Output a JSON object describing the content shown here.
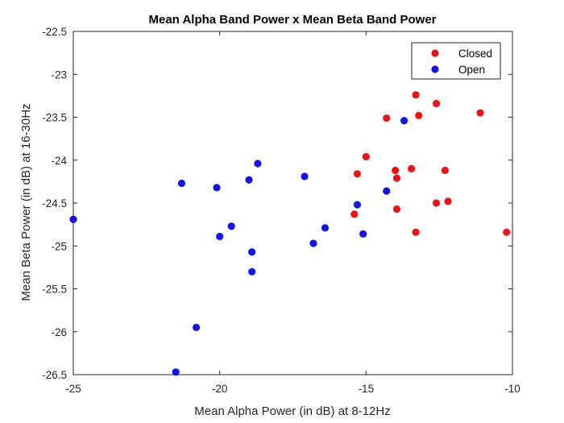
{
  "chart_data": {
    "type": "scatter",
    "title": "Mean Alpha Band Power x Mean Beta Band Power",
    "xlabel": "Mean Alpha Power (in dB) at 8-12Hz",
    "ylabel": "Mean Beta Power (in dB) at 16-30Hz",
    "xlim": [
      -25,
      -10
    ],
    "ylim": [
      -26.5,
      -22.5
    ],
    "xticks": [
      -25,
      -20,
      -15,
      -10
    ],
    "xtick_labels": [
      "-25",
      "-20",
      "-15",
      "-10"
    ],
    "yticks": [
      -26.5,
      -26,
      -25.5,
      -25,
      -24.5,
      -24,
      -23.5,
      -23,
      -22.5
    ],
    "ytick_labels": [
      "-26.5",
      "-26",
      "-25.5",
      "-25",
      "-24.5",
      "-24",
      "-23.5",
      "-23",
      "-22.5"
    ],
    "grid": false,
    "legend_position": "top-right",
    "series": [
      {
        "name": "Closed",
        "color": "#e8141a",
        "points": [
          [
            -13.3,
            -23.24
          ],
          [
            -12.6,
            -23.34
          ],
          [
            -11.1,
            -23.45
          ],
          [
            -13.2,
            -23.48
          ],
          [
            -14.3,
            -23.51
          ],
          [
            -15.0,
            -23.96
          ],
          [
            -14.0,
            -24.12
          ],
          [
            -13.45,
            -24.1
          ],
          [
            -12.3,
            -24.12
          ],
          [
            -15.3,
            -24.16
          ],
          [
            -13.95,
            -24.21
          ],
          [
            -12.6,
            -24.5
          ],
          [
            -12.2,
            -24.48
          ],
          [
            -13.95,
            -24.57
          ],
          [
            -15.4,
            -24.63
          ],
          [
            -13.3,
            -24.84
          ],
          [
            -10.2,
            -24.84
          ]
        ]
      },
      {
        "name": "Open",
        "color": "#1414e6",
        "points": [
          [
            -13.7,
            -23.54
          ],
          [
            -18.7,
            -24.04
          ],
          [
            -17.1,
            -24.19
          ],
          [
            -19.0,
            -24.23
          ],
          [
            -21.3,
            -24.27
          ],
          [
            -20.1,
            -24.32
          ],
          [
            -14.3,
            -24.36
          ],
          [
            -15.3,
            -24.52
          ],
          [
            -25.0,
            -24.69
          ],
          [
            -19.6,
            -24.77
          ],
          [
            -16.4,
            -24.79
          ],
          [
            -15.1,
            -24.86
          ],
          [
            -20.0,
            -24.89
          ],
          [
            -16.8,
            -24.97
          ],
          [
            -18.9,
            -25.07
          ],
          [
            -18.9,
            -25.3
          ],
          [
            -20.8,
            -25.95
          ],
          [
            -21.5,
            -26.47
          ]
        ]
      }
    ]
  }
}
